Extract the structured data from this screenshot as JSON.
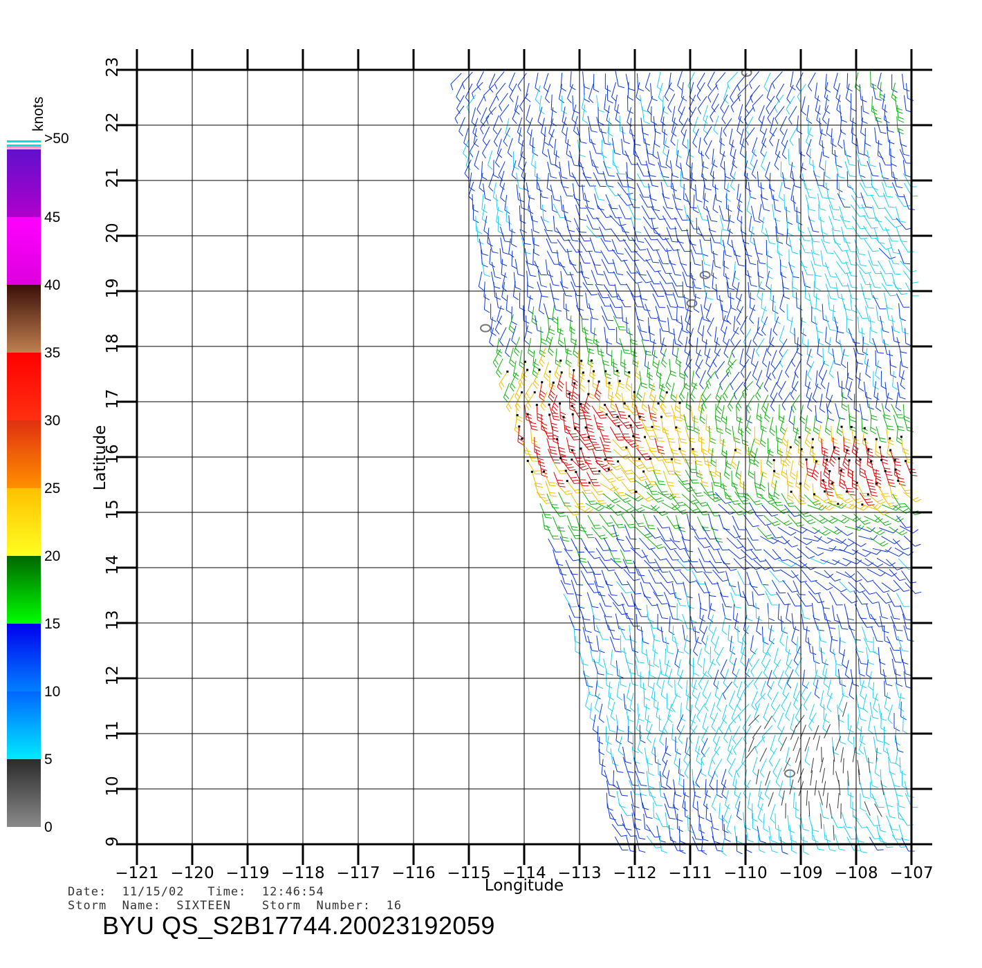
{
  "colorbar": {
    "unit_label": "knots",
    "levels": [
      "0",
      "5",
      "10",
      "15",
      "20",
      "25",
      "30",
      "35",
      "40",
      "45",
      ">50"
    ],
    "segments": [
      {
        "from": 0,
        "to": 5,
        "top": "#2b2b2b",
        "bottom": "#8a8a8a"
      },
      {
        "from": 5,
        "to": 10,
        "top": "#0066ff",
        "bottom": "#00eaff"
      },
      {
        "from": 10,
        "to": 15,
        "top": "#0000ee",
        "bottom": "#0080ff"
      },
      {
        "from": 15,
        "to": 20,
        "top": "#006600",
        "bottom": "#00ff00"
      },
      {
        "from": 20,
        "to": 25,
        "top": "#ffc000",
        "bottom": "#ffff20"
      },
      {
        "from": 25,
        "to": 30,
        "top": "#e03010",
        "bottom": "#ff9000"
      },
      {
        "from": 30,
        "to": 35,
        "top": "#ff0000",
        "bottom": "#ff3010"
      },
      {
        "from": 35,
        "to": 40,
        "top": "#3a1008",
        "bottom": "#c08050"
      },
      {
        "from": 40,
        "to": 45,
        "top": "#ff00ff",
        "bottom": "#dd00dd"
      },
      {
        "from": 45,
        "to": 50,
        "top": "#6010cc",
        "bottom": "#b000cc"
      }
    ],
    "top_stripes": [
      "#ff99cc",
      "#00e0e0",
      "#ffffff",
      "#00e0e0"
    ]
  },
  "map": {
    "lon_range": [
      -121,
      -107
    ],
    "lat_range": [
      9,
      23
    ],
    "lon_ticks": [
      "-121",
      "-120",
      "-119",
      "-118",
      "-117",
      "-116",
      "-115",
      "-114",
      "-113",
      "-112",
      "-111",
      "-110",
      "-109",
      "-108",
      "-107"
    ],
    "lat_ticks": [
      "9",
      "10",
      "11",
      "12",
      "13",
      "14",
      "15",
      "16",
      "17",
      "18",
      "19",
      "20",
      "21",
      "22",
      "23"
    ],
    "x_title": "Longitude",
    "y_title": "Latitude",
    "swath_west_edge": [
      [
        -115.2,
        23
      ],
      [
        -114.8,
        19.2
      ],
      [
        -114.3,
        17.3
      ],
      [
        -113.8,
        15.3
      ],
      [
        -113.3,
        13.5
      ],
      [
        -112.8,
        11.5
      ],
      [
        -112.4,
        9
      ]
    ],
    "swath_east_edge": -107.1,
    "wind_barbs": "wind barbs drawn over the swath, coloured by speed",
    "colors": {
      "calm": "#3a3a3a",
      "light": "#20d0f0",
      "moderate": "#0a36d8",
      "fresh": "#10b010",
      "strong": "#f0c000",
      "gale": "#d80000",
      "storm": "#b000c0"
    },
    "islands": [
      {
        "lon": -114.7,
        "lat": 18.33
      },
      {
        "lon": -110.73,
        "lat": 19.29
      },
      {
        "lon": -110.97,
        "lat": 18.78
      },
      {
        "lon": -109.98,
        "lat": 22.95
      },
      {
        "lon": -109.2,
        "lat": 10.28
      }
    ]
  },
  "meta": {
    "line1": "Date:  11/15/02   Time:  12:46:54",
    "line2": "Storm  Name:  SIXTEEN    Storm  Number:  16",
    "product_id": "BYU  QS_S2B17744.20023192059"
  }
}
